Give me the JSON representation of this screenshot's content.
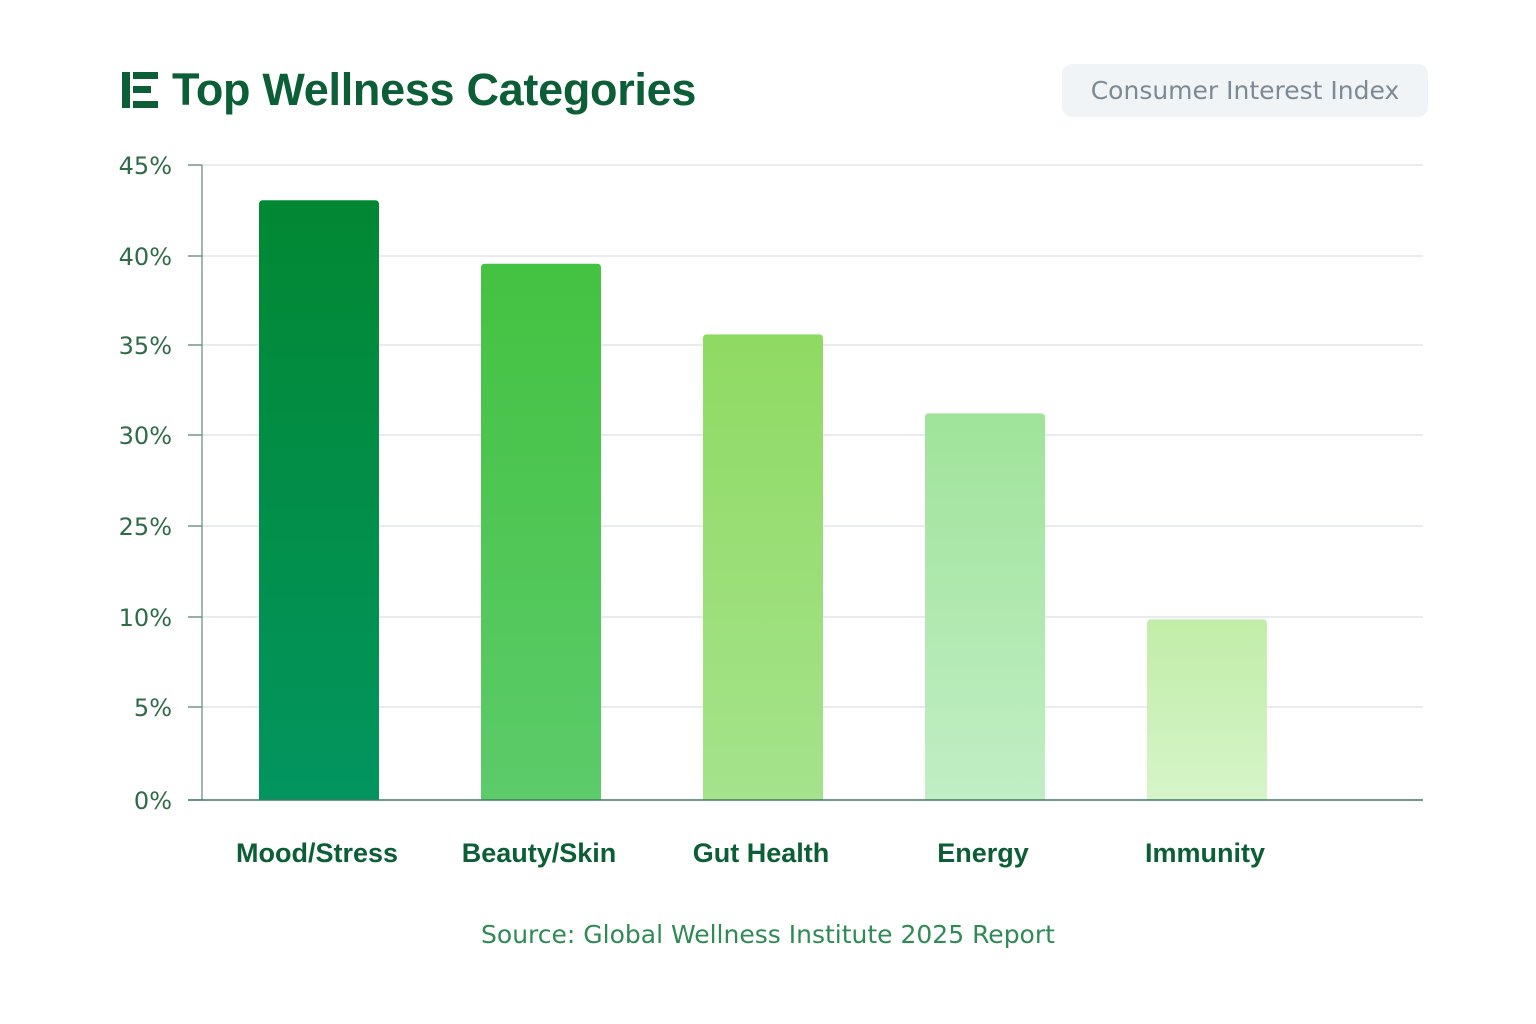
{
  "header": {
    "title": "Top Wellness Categories",
    "badge": "Consumer Interest Index",
    "icon": "bar-chart-icon"
  },
  "source": "Source: Global Wellness Institute 2025 Report",
  "colors": {
    "title": "#0b5e35",
    "bars": [
      [
        "#028833",
        "#02955f"
      ],
      [
        "#44c241",
        "#5ccb6a"
      ],
      [
        "#8fda63",
        "#a5e38c"
      ],
      [
        "#9fe39a",
        "#c1eec5"
      ],
      [
        "#c1eda8",
        "#d6f4c9"
      ]
    ]
  },
  "chart_data": {
    "type": "bar",
    "title": "Top Wellness Categories",
    "subtitle": "Consumer Interest Index",
    "categories": [
      "Mood/Stress",
      "Beauty/Skin",
      "Gut Health",
      "Energy",
      "Immunity"
    ],
    "values": [
      42.5,
      38,
      33,
      27.4,
      12.8
    ],
    "ytick_labels": [
      "0%",
      "5%",
      "10%",
      "25%",
      "30%",
      "35%",
      "40%",
      "45%"
    ],
    "ylim": [
      0,
      45
    ],
    "grid": true,
    "legend": "none"
  }
}
